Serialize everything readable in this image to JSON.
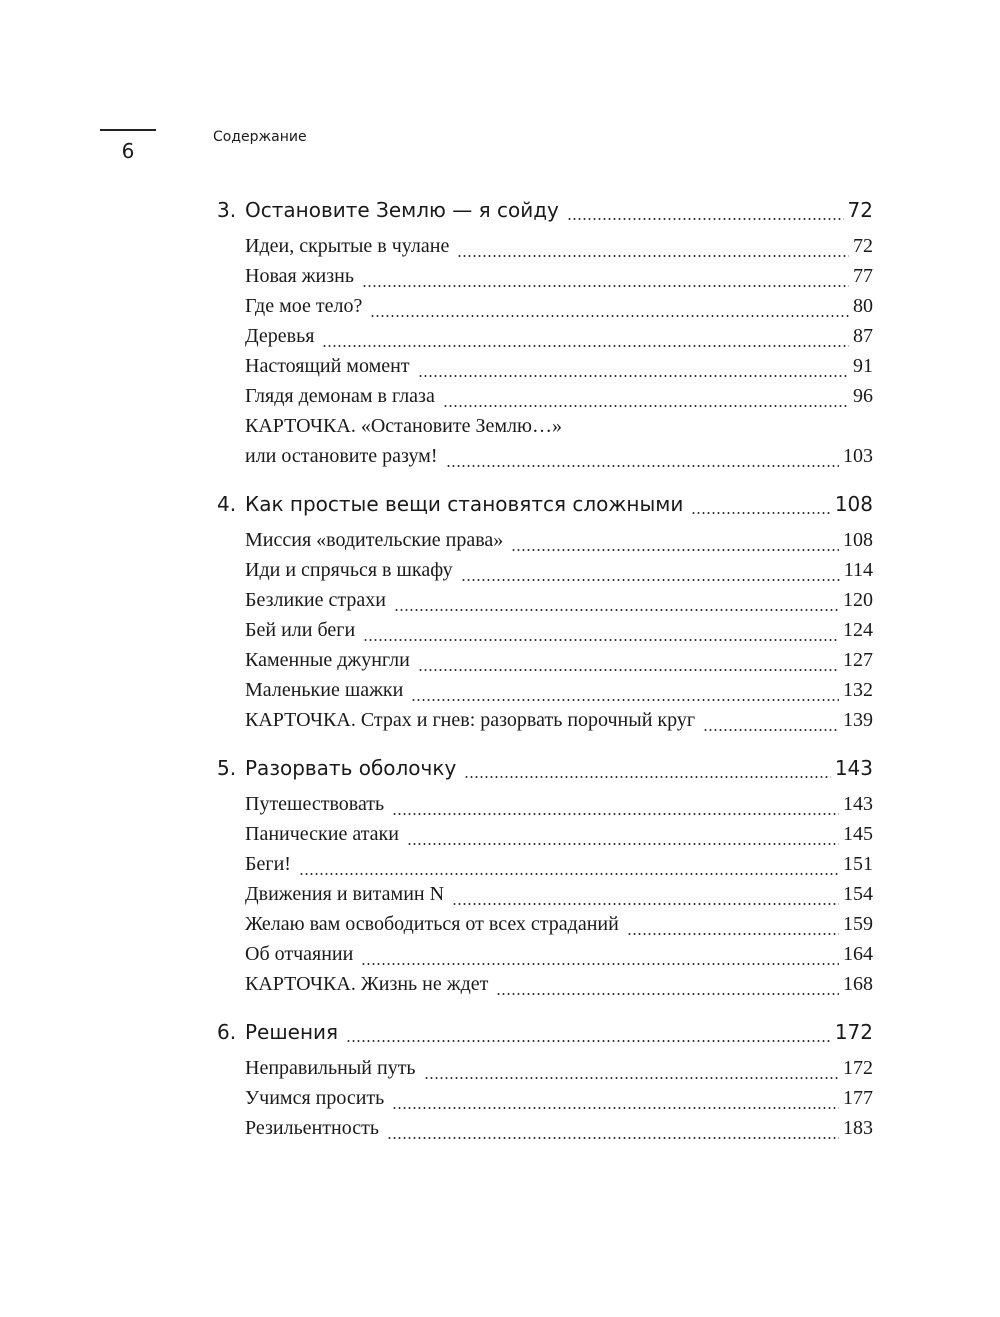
{
  "header": {
    "page_number": "6",
    "running_title": "Содержание"
  },
  "chapters": [
    {
      "number": "3.",
      "title": "Остановите Землю — я сойду",
      "page": "72",
      "entries": [
        {
          "title": "Идеи, скрытые в чулане",
          "page": "72"
        },
        {
          "title": "Новая жизнь",
          "page": "77"
        },
        {
          "title": "Где мое тело?",
          "page": "80"
        },
        {
          "title": "Деревья",
          "page": "87"
        },
        {
          "title": "Настоящий момент",
          "page": "91"
        },
        {
          "title": "Глядя демонам в глаза",
          "page": "96"
        },
        {
          "title": "КАРТОЧКА. «Остановите Землю…»",
          "page": ""
        },
        {
          "title": "или остановите разум!",
          "page": "103"
        }
      ]
    },
    {
      "number": "4.",
      "title": "Как простые вещи становятся сложными",
      "page": "108",
      "entries": [
        {
          "title": "Миссия «водительские права»",
          "page": "108"
        },
        {
          "title": "Иди и спрячься в шкафу",
          "page": "114"
        },
        {
          "title": "Безликие страхи",
          "page": "120"
        },
        {
          "title": "Бей или беги",
          "page": "124"
        },
        {
          "title": "Каменные джунгли",
          "page": "127"
        },
        {
          "title": "Маленькие шажки",
          "page": "132"
        },
        {
          "title": "КАРТОЧКА. Страх и гнев: разорвать порочный круг",
          "page": "139"
        }
      ]
    },
    {
      "number": "5.",
      "title": "Разорвать оболочку",
      "page": "143",
      "entries": [
        {
          "title": "Путешествовать",
          "page": "143"
        },
        {
          "title": "Панические атаки",
          "page": "145"
        },
        {
          "title": "Беги!",
          "page": "151"
        },
        {
          "title": "Движения и витамин N",
          "page": "154"
        },
        {
          "title": "Желаю вам освободиться от всех страданий",
          "page": "159"
        },
        {
          "title": "Об отчаянии",
          "page": "164"
        },
        {
          "title": "КАРТОЧКА. Жизнь не ждет",
          "page": "168"
        }
      ]
    },
    {
      "number": "6.",
      "title": "Решения",
      "page": "172",
      "entries": [
        {
          "title": "Неправильный путь",
          "page": "172"
        },
        {
          "title": "Учимся просить",
          "page": "177"
        },
        {
          "title": "Резильентность",
          "page": "183"
        }
      ]
    }
  ]
}
